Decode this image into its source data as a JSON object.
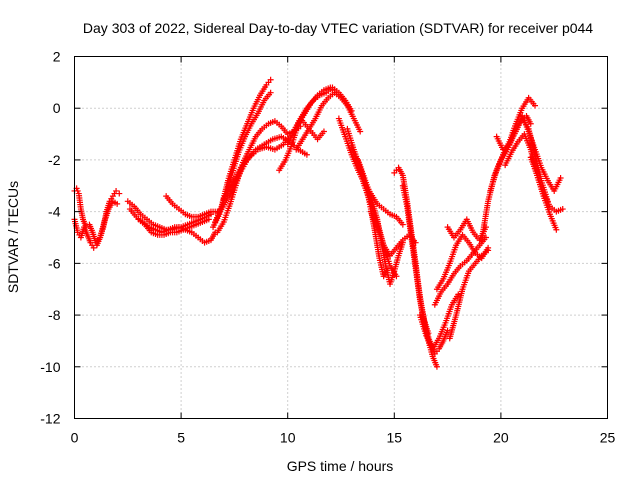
{
  "chart_data": {
    "type": "scatter",
    "title": "Day 303 of 2022, Sidereal Day-to-day VTEC variation (SDTVAR) for receiver p044",
    "xlabel": "GPS time / hours",
    "ylabel": "SDTVAR / TECUs",
    "xlim": [
      0,
      25
    ],
    "ylim": [
      -12,
      2
    ],
    "xticks": [
      0,
      5,
      10,
      15,
      20,
      25
    ],
    "yticks": [
      2,
      0,
      -2,
      -4,
      -6,
      -8,
      -10,
      -12
    ],
    "grid": true,
    "marker": "plus",
    "color": "#ff0000",
    "series": [
      {
        "x": [
          0.0,
          0.15,
          0.3,
          0.45,
          0.6,
          0.75,
          0.9,
          1.05,
          1.2,
          1.35,
          1.5,
          1.65,
          1.8,
          1.95,
          2.1
        ],
        "y": [
          -4.3,
          -4.8,
          -5.0,
          -4.6,
          -4.9,
          -5.2,
          -5.4,
          -5.3,
          -5.0,
          -4.6,
          -4.0,
          -3.6,
          -3.4,
          -3.2,
          -3.3
        ]
      },
      {
        "x": [
          0.0,
          0.1,
          0.2,
          0.3,
          0.4,
          0.55,
          0.7,
          0.85,
          1.0,
          1.2,
          1.4,
          1.6,
          1.8,
          2.0
        ],
        "y": [
          -3.2,
          -3.1,
          -3.3,
          -3.9,
          -4.3,
          -4.6,
          -4.5,
          -4.8,
          -5.2,
          -5.0,
          -4.4,
          -3.9,
          -3.6,
          -3.7
        ]
      },
      {
        "x": [
          2.6,
          2.9,
          3.2,
          3.5,
          3.8,
          4.1,
          4.4,
          4.7,
          5.0,
          5.3,
          5.6,
          5.9,
          6.2,
          6.4
        ],
        "y": [
          -3.9,
          -4.2,
          -4.4,
          -4.6,
          -4.7,
          -4.8,
          -4.7,
          -4.6,
          -4.6,
          -4.5,
          -4.4,
          -4.3,
          -4.2,
          -4.1
        ]
      },
      {
        "x": [
          2.5,
          2.8,
          3.1,
          3.4,
          3.7,
          4.0,
          4.3,
          4.6,
          4.9,
          5.2,
          5.5,
          5.8,
          6.1,
          6.4,
          6.6
        ],
        "y": [
          -3.6,
          -3.8,
          -4.1,
          -4.3,
          -4.5,
          -4.6,
          -4.7,
          -4.7,
          -4.6,
          -4.7,
          -4.8,
          -5.0,
          -5.2,
          -5.1,
          -4.8
        ]
      },
      {
        "x": [
          3.0,
          3.3,
          3.6,
          3.9,
          4.2,
          4.5,
          4.8,
          5.1,
          5.4,
          5.7,
          6.0,
          6.3
        ],
        "y": [
          -4.3,
          -4.5,
          -4.8,
          -4.9,
          -4.9,
          -4.8,
          -4.8,
          -4.7,
          -4.6,
          -4.5,
          -4.4,
          -4.3
        ]
      },
      {
        "x": [
          4.3,
          4.6,
          4.9,
          5.2,
          5.5,
          5.8,
          6.1,
          6.4,
          6.7
        ],
        "y": [
          -3.4,
          -3.7,
          -3.9,
          -4.1,
          -4.2,
          -4.2,
          -4.1,
          -4.0,
          -4.0
        ]
      },
      {
        "x": [
          6.6,
          6.9,
          7.2,
          7.5,
          7.8,
          8.1,
          8.4,
          8.7,
          9.0,
          9.2
        ],
        "y": [
          -4.4,
          -3.8,
          -2.8,
          -2.0,
          -1.2,
          -0.6,
          0.0,
          0.5,
          0.9,
          1.1
        ]
      },
      {
        "x": [
          6.5,
          6.8,
          7.1,
          7.4,
          7.7,
          8.0,
          8.3,
          8.6,
          8.9,
          9.2
        ],
        "y": [
          -4.6,
          -4.1,
          -3.3,
          -2.5,
          -1.7,
          -1.1,
          -0.6,
          -0.2,
          0.3,
          0.6
        ]
      },
      {
        "x": [
          6.7,
          7.0,
          7.3,
          7.6,
          7.9,
          8.2,
          8.5,
          8.8,
          9.1,
          9.4,
          9.7,
          10.0,
          10.3,
          10.6
        ],
        "y": [
          -4.8,
          -4.4,
          -3.7,
          -2.9,
          -2.1,
          -1.6,
          -1.1,
          -0.8,
          -0.6,
          -0.5,
          -0.7,
          -1.0,
          -0.9,
          -0.7
        ]
      },
      {
        "x": [
          6.9,
          7.3,
          7.7,
          8.1,
          8.5,
          8.9,
          9.3,
          9.7,
          10.1,
          10.5,
          10.9
        ],
        "y": [
          -3.9,
          -3.3,
          -2.6,
          -2.0,
          -1.6,
          -1.4,
          -1.2,
          -1.1,
          -1.3,
          -1.6,
          -1.8
        ]
      },
      {
        "x": [
          7.0,
          7.4,
          7.8,
          8.2,
          8.6,
          9.0,
          9.4,
          9.8,
          10.2,
          10.6,
          11.0,
          11.4,
          11.7
        ],
        "y": [
          -3.5,
          -2.9,
          -2.3,
          -1.9,
          -1.6,
          -1.5,
          -1.6,
          -1.4,
          -1.0,
          -0.4,
          -0.8,
          -1.2,
          -0.9
        ]
      },
      {
        "x": [
          9.6,
          9.9,
          10.2,
          10.5,
          10.8,
          11.1,
          11.4,
          11.7,
          12.0,
          12.2
        ],
        "y": [
          -2.4,
          -2.0,
          -1.4,
          -0.6,
          -0.2,
          0.2,
          0.5,
          0.7,
          0.8,
          0.6
        ]
      },
      {
        "x": [
          10.0,
          10.3,
          10.6,
          10.9,
          11.2,
          11.5,
          11.8,
          12.1,
          12.4,
          12.7,
          13.0
        ],
        "y": [
          -1.4,
          -0.9,
          -0.4,
          0.0,
          0.3,
          0.5,
          0.6,
          0.8,
          0.6,
          0.3,
          -0.1
        ]
      },
      {
        "x": [
          10.4,
          10.7,
          11.0,
          11.3,
          11.6,
          11.9,
          12.2,
          12.5,
          12.8,
          13.1,
          13.4
        ],
        "y": [
          -1.6,
          -1.2,
          -0.8,
          -0.4,
          0.1,
          0.4,
          0.6,
          0.4,
          0.1,
          -0.4,
          -0.9
        ]
      },
      {
        "x": [
          12.4,
          12.7,
          13.0,
          13.3,
          13.6,
          13.9,
          14.2,
          14.5,
          14.8,
          15.1,
          15.4
        ],
        "y": [
          -0.4,
          -1.1,
          -1.8,
          -2.4,
          -2.9,
          -3.3,
          -3.7,
          -3.9,
          -4.1,
          -4.2,
          -4.5
        ]
      },
      {
        "x": [
          12.8,
          13.1,
          13.4,
          13.7,
          13.9,
          14.1,
          14.3,
          14.5,
          14.7
        ],
        "y": [
          -0.8,
          -1.6,
          -2.3,
          -3.1,
          -3.9,
          -4.8,
          -5.8,
          -6.5,
          -6.2
        ]
      },
      {
        "x": [
          13.0,
          13.3,
          13.6,
          13.9,
          14.2,
          14.5,
          14.8,
          15.1
        ],
        "y": [
          -1.5,
          -2.2,
          -3.0,
          -3.7,
          -4.4,
          -5.3,
          -6.1,
          -6.5
        ]
      },
      {
        "x": [
          13.3,
          13.6,
          13.9,
          14.2,
          14.4,
          14.6,
          14.8,
          15.0,
          15.2,
          15.4
        ],
        "y": [
          -2.0,
          -2.7,
          -3.4,
          -4.3,
          -5.2,
          -6.1,
          -6.8,
          -6.3,
          -5.7,
          -5.2
        ]
      },
      {
        "x": [
          13.9,
          14.2,
          14.5,
          14.8,
          15.1,
          15.4,
          15.7,
          16.0
        ],
        "y": [
          -4.0,
          -4.6,
          -5.3,
          -5.7,
          -5.4,
          -5.1,
          -4.9,
          -5.2
        ]
      },
      {
        "x": [
          15.0,
          15.2,
          15.4,
          15.6,
          15.8,
          16.0,
          16.2,
          16.4,
          16.6
        ],
        "y": [
          -2.5,
          -2.3,
          -2.6,
          -3.6,
          -4.8,
          -6.0,
          -7.3,
          -8.2,
          -8.7
        ]
      },
      {
        "x": [
          15.4,
          15.6,
          15.8,
          16.0,
          16.2,
          16.4,
          16.6,
          16.8,
          17.0
        ],
        "y": [
          -3.0,
          -3.8,
          -5.0,
          -6.2,
          -7.4,
          -8.3,
          -9.0,
          -9.6,
          -10.0
        ]
      },
      {
        "x": [
          15.7,
          15.9,
          16.1,
          16.3,
          16.5,
          16.7,
          16.9,
          17.1,
          17.3,
          17.5
        ],
        "y": [
          -4.3,
          -5.4,
          -6.7,
          -7.8,
          -8.6,
          -9.1,
          -9.5,
          -9.3,
          -9.0,
          -8.6
        ]
      },
      {
        "x": [
          16.2,
          16.5,
          16.8,
          17.1,
          17.4,
          17.7,
          18.0
        ],
        "y": [
          -8.0,
          -8.8,
          -9.3,
          -8.9,
          -8.3,
          -7.6,
          -7.2
        ]
      },
      {
        "x": [
          16.9,
          17.2,
          17.5,
          17.8,
          18.1,
          18.4,
          18.7,
          19.0,
          19.3
        ],
        "y": [
          -7.6,
          -7.1,
          -6.8,
          -6.4,
          -6.1,
          -5.9,
          -5.6,
          -5.3,
          -5.0
        ]
      },
      {
        "x": [
          17.0,
          17.3,
          17.6,
          17.9,
          18.2,
          18.5,
          18.8,
          19.1,
          19.4
        ],
        "y": [
          -7.0,
          -6.6,
          -6.0,
          -5.3,
          -4.9,
          -5.2,
          -5.6,
          -5.8,
          -5.4
        ]
      },
      {
        "x": [
          17.6,
          17.9,
          18.2,
          18.5,
          18.8,
          19.1,
          19.4
        ],
        "y": [
          -8.9,
          -8.0,
          -7.0,
          -6.3,
          -6.0,
          -5.7,
          -5.5
        ]
      },
      {
        "x": [
          17.5,
          17.8,
          18.1,
          18.4,
          18.7,
          19.0,
          19.3
        ],
        "y": [
          -4.6,
          -5.0,
          -4.7,
          -4.3,
          -4.8,
          -5.1,
          -4.6
        ]
      },
      {
        "x": [
          19.1,
          19.4,
          19.7,
          20.0,
          20.3,
          20.6,
          20.9,
          21.2,
          21.4
        ],
        "y": [
          -5.1,
          -3.6,
          -2.6,
          -2.0,
          -1.6,
          -1.0,
          -0.5,
          -0.3,
          -0.6
        ]
      },
      {
        "x": [
          19.5,
          19.8,
          20.1,
          20.4,
          20.7,
          21.0,
          21.3,
          21.6
        ],
        "y": [
          -3.2,
          -2.4,
          -1.8,
          -1.3,
          -0.6,
          0.0,
          0.4,
          0.1
        ]
      },
      {
        "x": [
          19.8,
          20.1,
          20.4,
          20.7,
          21.0,
          21.3,
          21.6,
          21.9,
          22.2
        ],
        "y": [
          -1.1,
          -1.6,
          -1.4,
          -0.9,
          -0.4,
          -0.8,
          -1.8,
          -2.8,
          -3.6
        ]
      },
      {
        "x": [
          20.2,
          20.5,
          20.8,
          21.1,
          21.4,
          21.7,
          22.0,
          22.3,
          22.6
        ],
        "y": [
          -2.2,
          -1.7,
          -1.3,
          -1.0,
          -1.6,
          -2.6,
          -3.4,
          -4.1,
          -4.7
        ]
      },
      {
        "x": [
          21.0,
          21.3,
          21.6,
          21.9,
          22.2,
          22.5,
          22.8
        ],
        "y": [
          -0.3,
          -0.9,
          -1.6,
          -2.3,
          -2.8,
          -3.2,
          -2.7
        ]
      },
      {
        "x": [
          21.4,
          21.7,
          22.0,
          22.3,
          22.6,
          22.9
        ],
        "y": [
          -1.9,
          -2.6,
          -3.3,
          -3.8,
          -4.0,
          -3.9
        ]
      }
    ]
  }
}
